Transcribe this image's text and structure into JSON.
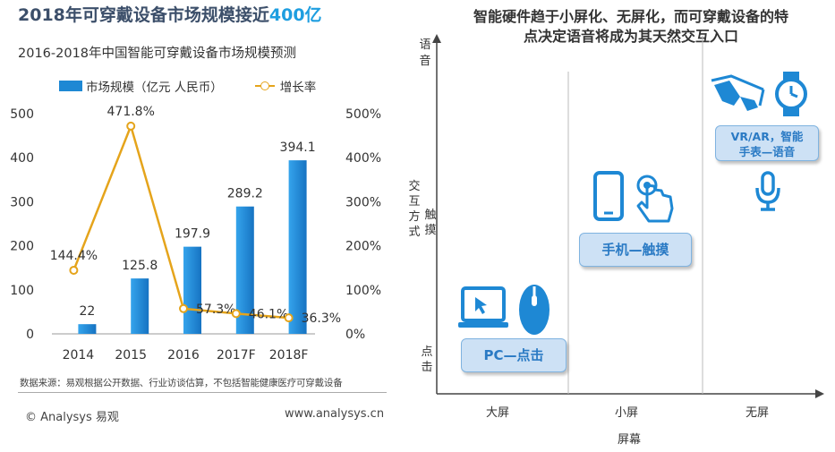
{
  "left": {
    "title_pre": "2018年可穿戴设备市场规模接近",
    "title_hl": "400亿",
    "source_note": "数据来源：易观根据公开数据、行业访谈估算，不包括智能健康医疗可穿戴设备",
    "footer_left": "© Analysys 易观",
    "footer_right": "www.analysys.cn"
  },
  "chart_data": {
    "type": "bar",
    "title": "2016-2018年中国智能可穿戴设备市场规模预测",
    "categories": [
      "2014",
      "2015",
      "2016",
      "2017F",
      "2018F"
    ],
    "series": [
      {
        "name": "市场规模（亿元 人民币）",
        "type": "bar",
        "axis": "left",
        "values": [
          22,
          125.8,
          197.9,
          289.2,
          394.1
        ],
        "labels": [
          "22",
          "125.8",
          "197.9",
          "289.2",
          "394.1"
        ],
        "color": "#1e88d4"
      },
      {
        "name": "增长率",
        "type": "line",
        "axis": "right",
        "values": [
          144.4,
          471.8,
          57.3,
          46.1,
          36.3
        ],
        "labels": [
          "144.4%",
          "471.8%",
          "57.3%",
          "46.1%",
          "36.3%"
        ],
        "color": "#e5a41b"
      }
    ],
    "ylim": [
      0,
      500
    ],
    "y_ticks": [
      "0",
      "100",
      "200",
      "300",
      "400",
      "500"
    ],
    "y2lim": [
      0,
      500
    ],
    "y2_ticks": [
      "0%",
      "100%",
      "200%",
      "300%",
      "400%",
      "500%"
    ],
    "legend": "top"
  },
  "right": {
    "title_line1": "智能硬件趋于小屏化、无屏化，而可穿戴设备的特",
    "title_line2": "点决定语音将成为其天然交互入口",
    "y_axis": {
      "top": [
        "语",
        "音"
      ],
      "mid_label": [
        "交",
        "互",
        "方",
        "式"
      ],
      "mid": [
        "触",
        "摸"
      ],
      "bottom": [
        "点",
        "击"
      ]
    },
    "x_categories": [
      "大屏",
      "小屏",
      "无屏"
    ],
    "x_title": "屏幕",
    "tags": {
      "pc": "PC—点击",
      "phone": "手机—触摸",
      "vr_line1": "VR/AR，智能",
      "vr_line2": "手表—语音"
    },
    "colors": {
      "icon": "#1e88d4",
      "icon_dark": "#0d5fa6",
      "tag_bg": "#cde1f5"
    }
  }
}
